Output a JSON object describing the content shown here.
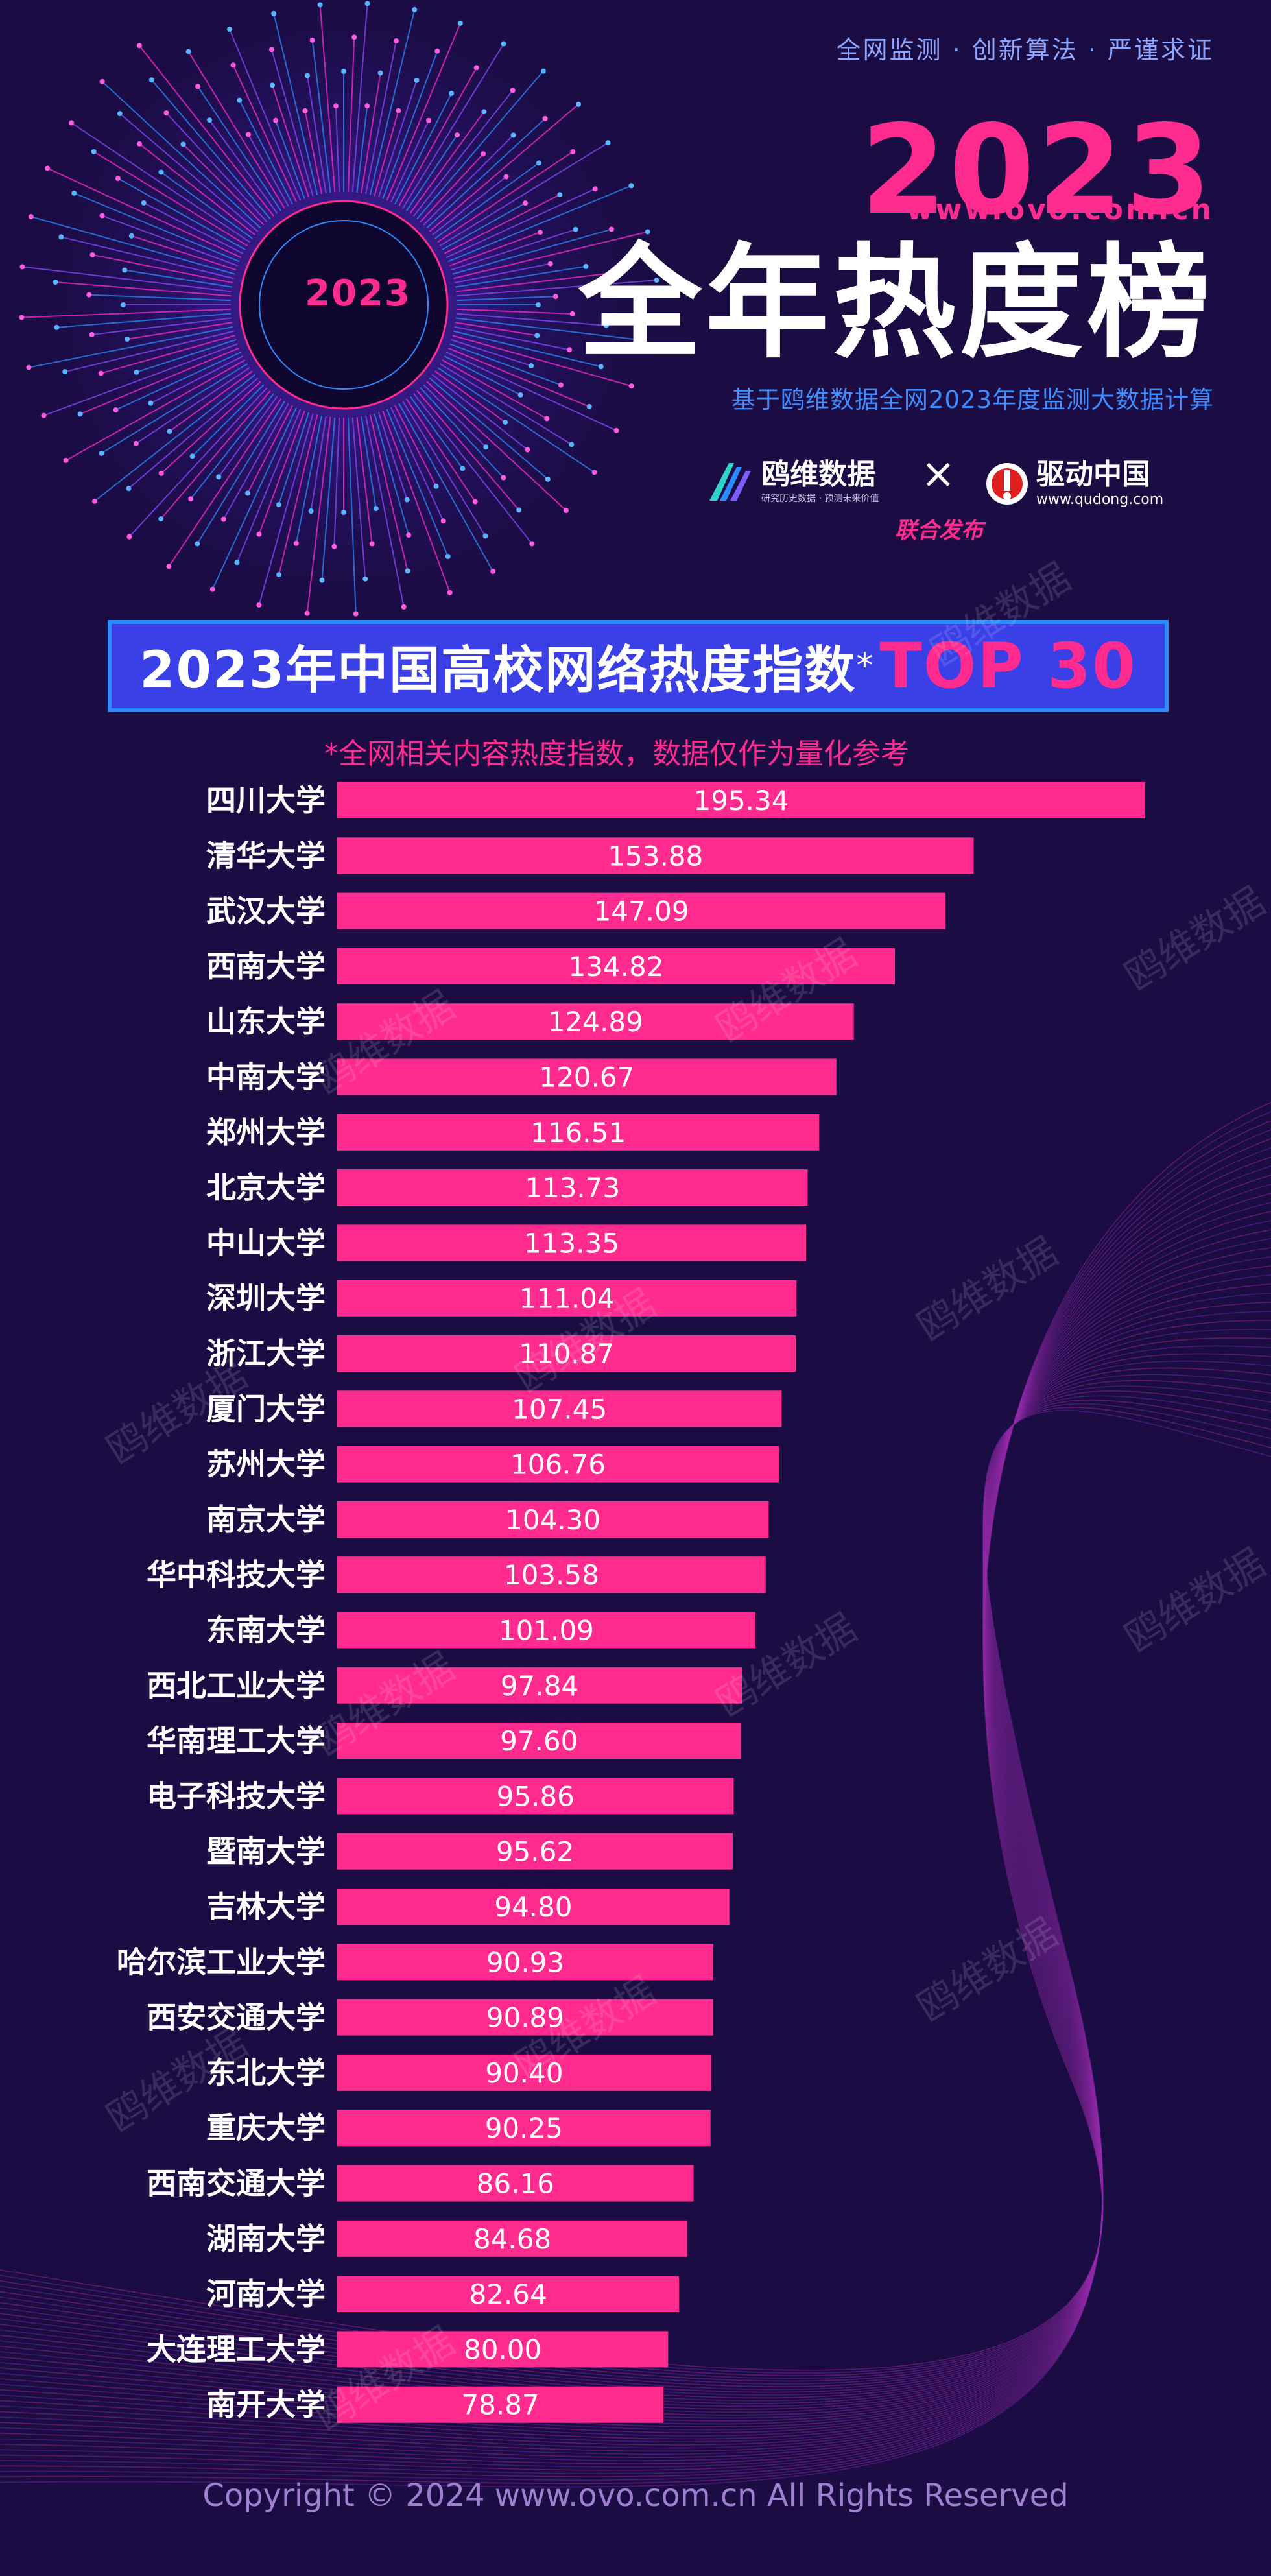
{
  "header": {
    "tagline": "全网监测 · 创新算法 · 严谨求证",
    "year": "2023",
    "domain": "www.ovo.com.cn",
    "headline": "全年热度榜",
    "subline": "基于鸥维数据全网2023年度监测大数据计算",
    "badge_year": "2023"
  },
  "logos": {
    "ovo_name": "鸥维数据",
    "ovo_sub": "研究历史数据 · 预测未来价值",
    "times": "×",
    "qudong_name": "驱动中国",
    "qudong_sub": "www.qudong.com",
    "joint": "联合发布"
  },
  "banner": {
    "main": "2023年中国高校网络热度指数",
    "star": "*",
    "top": "TOP 30"
  },
  "note": "*全网相关内容热度指数，数据仅作为量化参考",
  "watermark": "鸥维数据",
  "footer": "Copyright © 2024  www.ovo.com.cn All Rights Reserved",
  "colors": {
    "background": "#1b0c44",
    "bar": "#ff2b8f",
    "accent_pink": "#ff2b8f",
    "banner_blue": "#3b3fe6"
  },
  "chart_data": {
    "type": "bar",
    "orientation": "horizontal",
    "categories": [
      "四川大学",
      "清华大学",
      "武汉大学",
      "西南大学",
      "山东大学",
      "中南大学",
      "郑州大学",
      "北京大学",
      "中山大学",
      "深圳大学",
      "浙江大学",
      "厦门大学",
      "苏州大学",
      "南京大学",
      "华中科技大学",
      "东南大学",
      "西北工业大学",
      "华南理工大学",
      "电子科技大学",
      "暨南大学",
      "吉林大学",
      "哈尔滨工业大学",
      "西安交通大学",
      "东北大学",
      "重庆大学",
      "西南交通大学",
      "湖南大学",
      "河南大学",
      "大连理工大学",
      "南开大学"
    ],
    "values": [
      195.34,
      153.88,
      147.09,
      134.82,
      124.89,
      120.67,
      116.51,
      113.73,
      113.35,
      111.04,
      110.87,
      107.45,
      106.76,
      104.3,
      103.58,
      101.09,
      97.84,
      97.6,
      95.86,
      95.62,
      94.8,
      90.93,
      90.89,
      90.4,
      90.25,
      86.16,
      84.68,
      82.64,
      80.0,
      78.87
    ],
    "value_labels": [
      "195.34",
      "153.88",
      "147.09",
      "134.82",
      "124.89",
      "120.67",
      "116.51",
      "113.73",
      "113.35",
      "111.04",
      "110.87",
      "107.45",
      "106.76",
      "104.30",
      "103.58",
      "101.09",
      "97.84",
      "97.60",
      "95.86",
      "95.62",
      "94.80",
      "90.93",
      "90.89",
      "90.40",
      "90.25",
      "86.16",
      "84.68",
      "82.64",
      "80.00",
      "78.87"
    ],
    "title": "2023年中国高校网络热度指数*TOP 30",
    "xlabel": "",
    "ylabel": "",
    "xlim": [
      0,
      195.34
    ],
    "grid": false,
    "legend": "none"
  }
}
